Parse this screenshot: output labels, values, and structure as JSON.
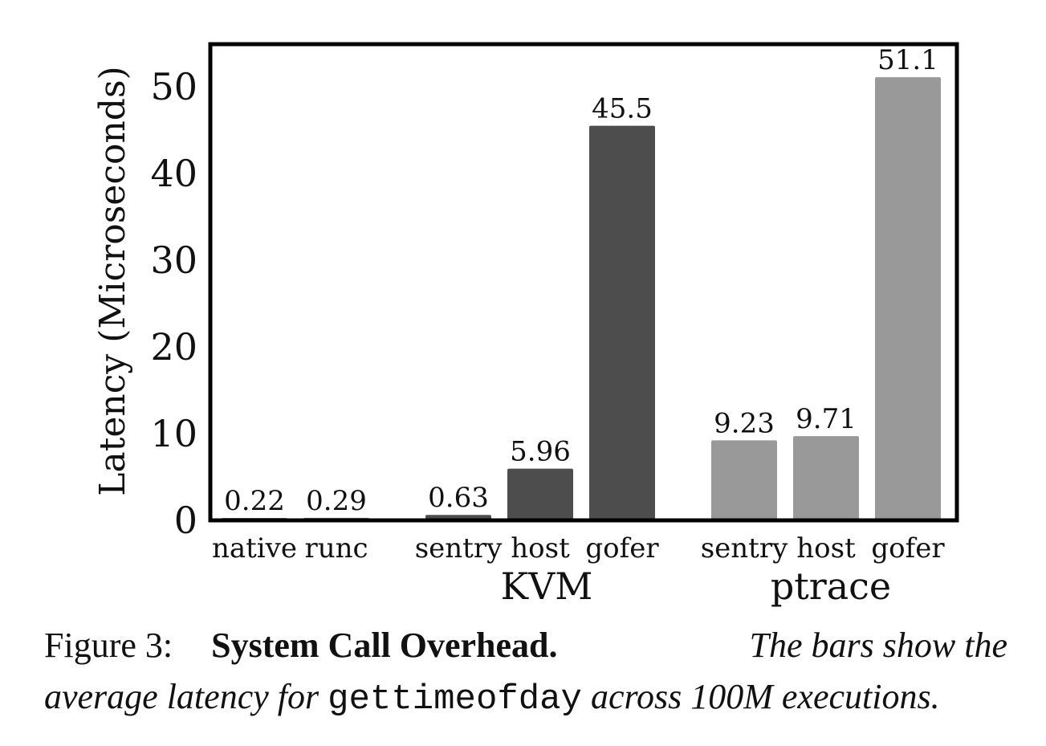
{
  "chart_data": {
    "type": "bar",
    "title": "",
    "ylabel": "Latency (Microseconds)",
    "xlabel": "",
    "ylim": [
      0,
      55
    ],
    "yticks": [
      0,
      10,
      20,
      30,
      40,
      50
    ],
    "grid": false,
    "categories": [
      "native",
      "runc",
      "sentry",
      "host",
      "gofer",
      "sentry",
      "host",
      "gofer"
    ],
    "groups": [
      {
        "name": "",
        "color": "#777777",
        "bars": [
          {
            "label": "native",
            "value": 0.22,
            "value_label": "0.22"
          },
          {
            "label": "runc",
            "value": 0.29,
            "value_label": "0.29"
          }
        ]
      },
      {
        "name": "KVM",
        "color": "#4d4d4d",
        "bars": [
          {
            "label": "sentry",
            "value": 0.63,
            "value_label": "0.63"
          },
          {
            "label": "host",
            "value": 5.96,
            "value_label": "5.96"
          },
          {
            "label": "gofer",
            "value": 45.5,
            "value_label": "45.5"
          }
        ]
      },
      {
        "name": "ptrace",
        "color": "#999999",
        "bars": [
          {
            "label": "sentry",
            "value": 9.23,
            "value_label": "9.23"
          },
          {
            "label": "host",
            "value": 9.71,
            "value_label": "9.71"
          },
          {
            "label": "gofer",
            "value": 51.1,
            "value_label": "51.1"
          }
        ]
      }
    ]
  },
  "caption": {
    "label": "Figure 3:",
    "title": "System Call Overhead.",
    "text_part1": "The bars show the",
    "text_part2": "average latency for",
    "code": "gettimeofday",
    "text_part3": "across 100M executions."
  }
}
